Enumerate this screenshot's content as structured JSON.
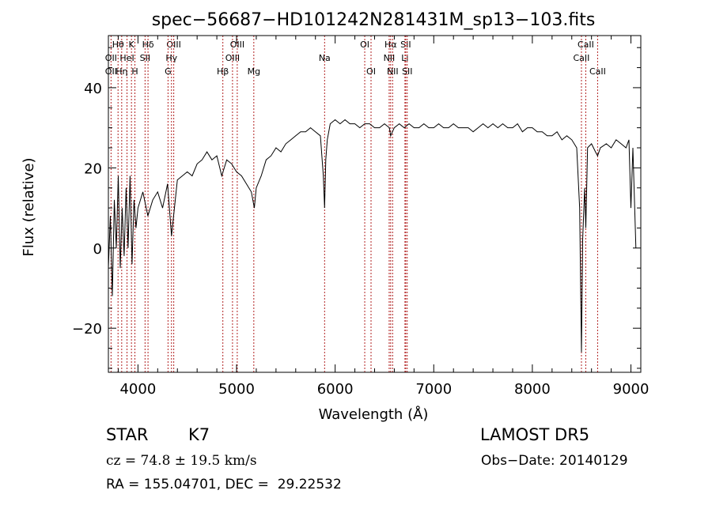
{
  "chart_data": {
    "type": "line",
    "title": "spec−56687−HD101242N281431M_sp13−103.fits",
    "xlabel": "Wavelength (Å)",
    "ylabel": "Flux (relative)",
    "xlim": [
      3700,
      9100
    ],
    "ylim": [
      -31,
      53
    ],
    "x_ticks": [
      4000,
      5000,
      6000,
      7000,
      8000,
      9000
    ],
    "y_ticks": [
      -20,
      0,
      20,
      40
    ],
    "x_minor_step": 200,
    "y_minor_step": 5,
    "grid": false,
    "line_color": "#000000",
    "marker_color": "#b22222",
    "series": [
      {
        "x": [
          3700,
          3720,
          3740,
          3760,
          3780,
          3800,
          3820,
          3840,
          3860,
          3880,
          3900,
          3920,
          3940,
          3960,
          3980,
          4000,
          4050,
          4100,
          4150,
          4200,
          4250,
          4300,
          4340,
          4400,
          4450,
          4500,
          4550,
          4600,
          4650,
          4700,
          4750,
          4800,
          4850,
          4900,
          4950,
          5000,
          5050,
          5100,
          5150,
          5180,
          5200,
          5250,
          5300,
          5350,
          5400,
          5450,
          5500,
          5550,
          5600,
          5650,
          5700,
          5750,
          5800,
          5850,
          5880,
          5893,
          5905,
          5920,
          5950,
          6000,
          6050,
          6100,
          6150,
          6200,
          6250,
          6300,
          6350,
          6400,
          6450,
          6500,
          6550,
          6563,
          6600,
          6650,
          6700,
          6750,
          6800,
          6850,
          6900,
          6950,
          7000,
          7050,
          7100,
          7150,
          7200,
          7250,
          7300,
          7350,
          7400,
          7450,
          7500,
          7550,
          7600,
          7650,
          7700,
          7750,
          7800,
          7850,
          7900,
          7950,
          8000,
          8050,
          8100,
          8150,
          8200,
          8250,
          8300,
          8350,
          8400,
          8450,
          8480,
          8498,
          8510,
          8530,
          8542,
          8560,
          8600,
          8640,
          8662,
          8690,
          8750,
          8800,
          8850,
          8900,
          8950,
          8980,
          9000,
          9020,
          9050
        ],
        "y": [
          -5,
          8,
          -12,
          12,
          0,
          18,
          -5,
          10,
          -2,
          15,
          0,
          18,
          -4,
          12,
          5,
          10,
          14,
          8,
          12,
          14,
          10,
          16,
          3,
          17,
          18,
          19,
          18,
          21,
          22,
          24,
          22,
          23,
          18,
          22,
          21,
          19,
          18,
          16,
          14,
          10,
          15,
          18,
          22,
          23,
          25,
          24,
          26,
          27,
          28,
          29,
          29,
          30,
          29,
          28,
          18,
          10,
          22,
          27,
          31,
          32,
          31,
          32,
          31,
          31,
          30,
          31,
          31,
          30,
          30,
          31,
          30,
          28,
          30,
          31,
          30,
          31,
          30,
          30,
          31,
          30,
          30,
          31,
          30,
          30,
          31,
          30,
          30,
          30,
          29,
          30,
          31,
          30,
          31,
          30,
          31,
          30,
          30,
          31,
          29,
          30,
          30,
          29,
          29,
          28,
          28,
          29,
          27,
          28,
          27,
          25,
          10,
          -26,
          2,
          15,
          5,
          25,
          26,
          24,
          23,
          25,
          26,
          25,
          27,
          26,
          25,
          27,
          10,
          25,
          0
        ]
      }
    ],
    "line_markers": [
      {
        "label": "Hθ",
        "wl": 3798,
        "row": 1
      },
      {
        "label": "OII",
        "wl": 3727,
        "row": 2
      },
      {
        "label": "OII",
        "wl": 3727,
        "row": 3
      },
      {
        "label": "K",
        "wl": 3934,
        "row": 1
      },
      {
        "label": "HeI",
        "wl": 3889,
        "row": 2
      },
      {
        "label": "Hη",
        "wl": 3835,
        "row": 3
      },
      {
        "label": "H",
        "wl": 3969,
        "row": 3
      },
      {
        "label": "Hδ",
        "wl": 4102,
        "row": 1
      },
      {
        "label": "SII",
        "wl": 4072,
        "row": 2
      },
      {
        "label": "OIII",
        "wl": 4363,
        "row": 1
      },
      {
        "label": "Hγ",
        "wl": 4340,
        "row": 2
      },
      {
        "label": "G",
        "wl": 4305,
        "row": 3
      },
      {
        "label": "OIII",
        "wl": 5007,
        "row": 1
      },
      {
        "label": "OIII",
        "wl": 4959,
        "row": 2
      },
      {
        "label": "Hβ",
        "wl": 4861,
        "row": 3
      },
      {
        "label": "Mg",
        "wl": 5175,
        "row": 3
      },
      {
        "label": "Na",
        "wl": 5893,
        "row": 2
      },
      {
        "label": "OI",
        "wl": 6300,
        "row": 1
      },
      {
        "label": "OI",
        "wl": 6364,
        "row": 3
      },
      {
        "label": "Hα",
        "wl": 6563,
        "row": 1
      },
      {
        "label": "NII",
        "wl": 6548,
        "row": 2
      },
      {
        "label": "NII",
        "wl": 6583,
        "row": 3
      },
      {
        "label": "SII",
        "wl": 6716,
        "row": 1
      },
      {
        "label": "Li",
        "wl": 6708,
        "row": 2
      },
      {
        "label": "SII",
        "wl": 6731,
        "row": 3
      },
      {
        "label": "CaII",
        "wl": 8542,
        "row": 1
      },
      {
        "label": "CaII",
        "wl": 8498,
        "row": 2
      },
      {
        "label": "CaII",
        "wl": 8662,
        "row": 3
      }
    ]
  },
  "info": {
    "object_class": "STAR",
    "subclass": "K7",
    "survey": "LAMOST DR5",
    "cz": "cz = 74.8 ± 19.5 km/s",
    "obs_date": "Obs−Date: 20140129",
    "radec": "RA = 155.04701, DEC =  29.22532"
  }
}
